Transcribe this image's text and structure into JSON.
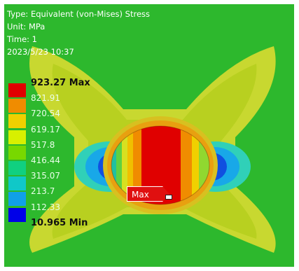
{
  "info": {
    "type_line": "Type: Equivalent (von-Mises) Stress",
    "unit_line": "Unit: MPa",
    "time_line": "Time: 1",
    "date_line": "2023/5/23 10:37"
  },
  "legend": {
    "max_value": "923.27",
    "max_suffix": "Max",
    "min_value": "10.965",
    "min_suffix": "Min",
    "levels": [
      "821.91",
      "720.54",
      "619.17",
      "517.8",
      "416.44",
      "315.07",
      "213.7",
      "112.33"
    ],
    "colors": [
      "#e00000",
      "#f08c00",
      "#f0d000",
      "#d8f000",
      "#78d800",
      "#10d080",
      "#10c8c8",
      "#10a0e8",
      "#0000e8"
    ]
  },
  "probe": {
    "label": "Max"
  }
}
